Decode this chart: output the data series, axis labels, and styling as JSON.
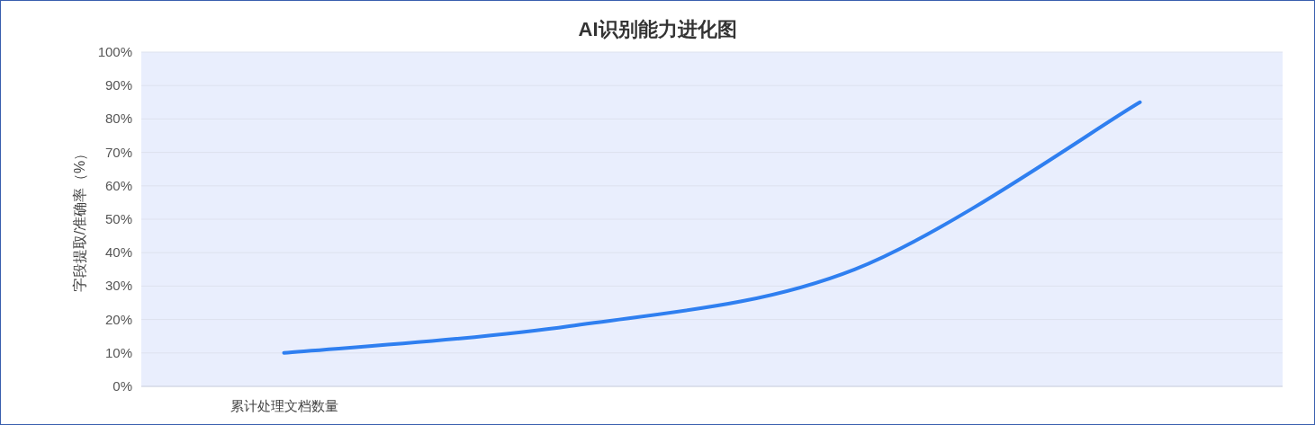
{
  "chart_data": {
    "type": "line",
    "title": "AI识别能力进化图",
    "ylabel": "字段提取/准确率（%）",
    "categories": [
      "累计处理文档数量",
      null,
      null,
      null
    ],
    "series": [
      {
        "color": "#2f7ff0",
        "values": [
          10,
          18,
          35,
          85
        ]
      }
    ],
    "ylim": [
      0,
      100
    ],
    "yticks": [
      {
        "value": 0,
        "label": "0%"
      },
      {
        "value": 10,
        "label": "10%"
      },
      {
        "value": 20,
        "label": "20%"
      },
      {
        "value": 30,
        "label": "30%"
      },
      {
        "value": 40,
        "label": "40%"
      },
      {
        "value": 50,
        "label": "50%"
      },
      {
        "value": 60,
        "label": "60%"
      },
      {
        "value": 70,
        "label": "70%"
      },
      {
        "value": 80,
        "label": "80%"
      },
      {
        "value": 90,
        "label": "90%"
      },
      {
        "value": 100,
        "label": "100%"
      }
    ],
    "grid": "y",
    "marker": "none"
  }
}
